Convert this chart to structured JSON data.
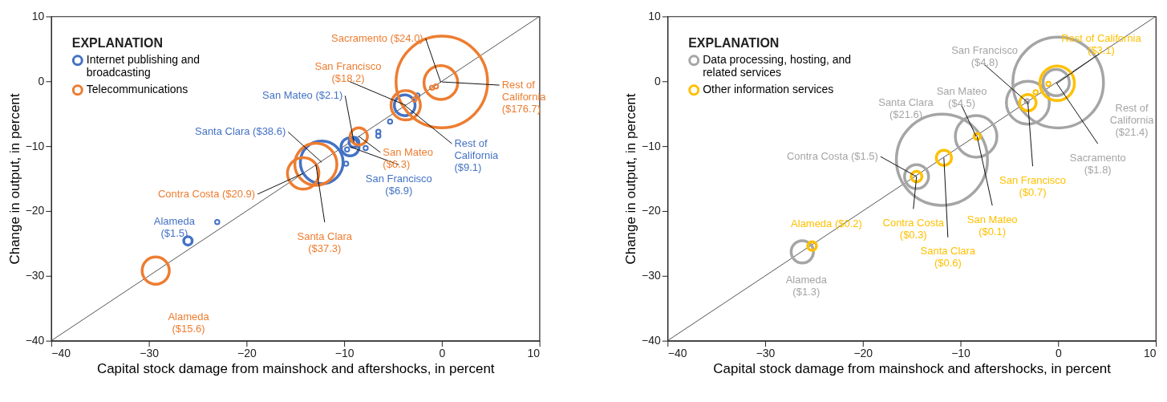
{
  "chart_data": [
    {
      "type": "bubble",
      "xlabel": "Capital stock damage from mainshock and aftershocks, in percent",
      "ylabel": "Change in output, in percent",
      "legend_title": "EXPLANATION",
      "legend": "top left",
      "marker": "circle",
      "grid": false,
      "xlim": [
        -40,
        10
      ],
      "xticks": [
        -40,
        -30,
        -20,
        -10,
        0,
        10
      ],
      "ylim": [
        -40,
        10
      ],
      "yticks": [
        -40,
        -30,
        -20,
        -10,
        0,
        10
      ],
      "series": [
        {
          "type": "line",
          "color": "#555555",
          "marker": "none",
          "x": [
            -40,
            10
          ],
          "values": [
            -40,
            10
          ]
        },
        {
          "name": "Internet publishing and broadcasting",
          "color": "#4472c4",
          "x": [
            -26,
            -23,
            -12.3,
            -9.4,
            -9.0,
            -3.8,
            -5.3,
            -6.5,
            -6.5,
            -7.8,
            -9.7,
            -9.8,
            -2.5
          ],
          "values": [
            -24.6,
            -21.7,
            -12.5,
            -10.1,
            -9.4,
            -3.7,
            -6.2,
            -7.8,
            -8.4,
            -10.3,
            -10.5,
            -12.7,
            -2.2
          ],
          "sizes": [
            1.5,
            null,
            38.6,
            6.9,
            2.1,
            9.1,
            null,
            null,
            null,
            null,
            null,
            null,
            null
          ],
          "value_labels": [
            "Alameda\n($1.5)",
            null,
            "Santa Clara  ($38.6)",
            "San Francisco\n($6.9)",
            "San Mateo ($2.1)",
            "Rest of\nCalifornia\n($9.1)",
            null,
            null,
            null,
            null,
            null,
            null,
            null
          ]
        },
        {
          "name": "Telecommunications",
          "color": "#ed7d31",
          "x": [
            -29.3,
            -14.2,
            -12.9,
            -8.5,
            -3.7,
            -0.1,
            0,
            -2.8,
            -1.0,
            -0.6
          ],
          "values": [
            -29.2,
            -14.2,
            -12.8,
            -8.5,
            -3.7,
            -0.2,
            -0.1,
            -2.8,
            -1.0,
            -0.8
          ],
          "sizes": [
            15.6,
            20.9,
            37.3,
            6.3,
            18.2,
            24.0,
            176.7,
            null,
            null,
            null
          ],
          "value_labels": [
            "Alameda\n($15.6)",
            "Contra Costa  ($20.9)",
            "Santa Clara\n($37.3)",
            "San Mateo\n($6.3)",
            "San Francisco\n($18.2)",
            "Sacramento  ($24.0)",
            "Rest of\nCalifornia\n($176.7)",
            null,
            null,
            null
          ]
        }
      ]
    },
    {
      "type": "bubble",
      "xlabel": "Capital stock damage from mainshock and aftershocks, in percent",
      "ylabel": "Change in output, in percent",
      "legend_title": "EXPLANATION",
      "legend": "top left",
      "marker": "circle",
      "grid": false,
      "xlim": [
        -40,
        10
      ],
      "xticks": [
        -40,
        -30,
        -20,
        -10,
        0,
        10
      ],
      "ylim": [
        -40,
        10
      ],
      "yticks": [
        -40,
        -30,
        -20,
        -10,
        0,
        10
      ],
      "series": [
        {
          "type": "line",
          "color": "#555555",
          "marker": "none",
          "x": [
            -40,
            10
          ],
          "values": [
            -40,
            10
          ]
        },
        {
          "name": "Data processing, hosting, and related services",
          "color": "#a5a5a5",
          "x": [
            -26.2,
            -14.5,
            -11.9,
            -8.4,
            -3.1,
            -0.2,
            0,
            -3.2
          ],
          "values": [
            -26.3,
            -14.7,
            -12.1,
            -8.5,
            -3.3,
            -0.2,
            -0.2,
            -3.1
          ],
          "sizes": [
            1.3,
            1.5,
            21.6,
            4.5,
            4.8,
            1.8,
            21.4,
            null
          ],
          "value_labels": [
            "Alameda\n($1.3)",
            "Contra Costa ($1.5)",
            "Santa Clara\n($21.6)",
            "San Mateo\n($4.5)",
            "San Francisco\n($4.8)",
            "Sacramento\n($1.8)",
            "Rest of\nCalifornia\n($21.4)",
            null
          ]
        },
        {
          "name": "Other information services",
          "color": "#ffc000",
          "x": [
            -25.2,
            -14.5,
            -11.7,
            -8.3,
            -3.1,
            -0.1,
            -2.3,
            -1.0
          ],
          "values": [
            -25.4,
            -14.7,
            -11.8,
            -8.5,
            -3.3,
            -0.3,
            -1.7,
            -0.4
          ],
          "sizes": [
            0.2,
            0.3,
            0.6,
            0.1,
            0.7,
            3.1,
            null,
            null
          ],
          "value_labels": [
            "Alameda ($0.2)",
            "Contra Costa\n($0.3)",
            "Santa Clara\n($0.6)",
            "San Mateo\n($0.1)",
            "San Francisco\n($0.7)",
            "Rest of California\n($3.1)",
            null,
            null
          ]
        }
      ]
    }
  ]
}
